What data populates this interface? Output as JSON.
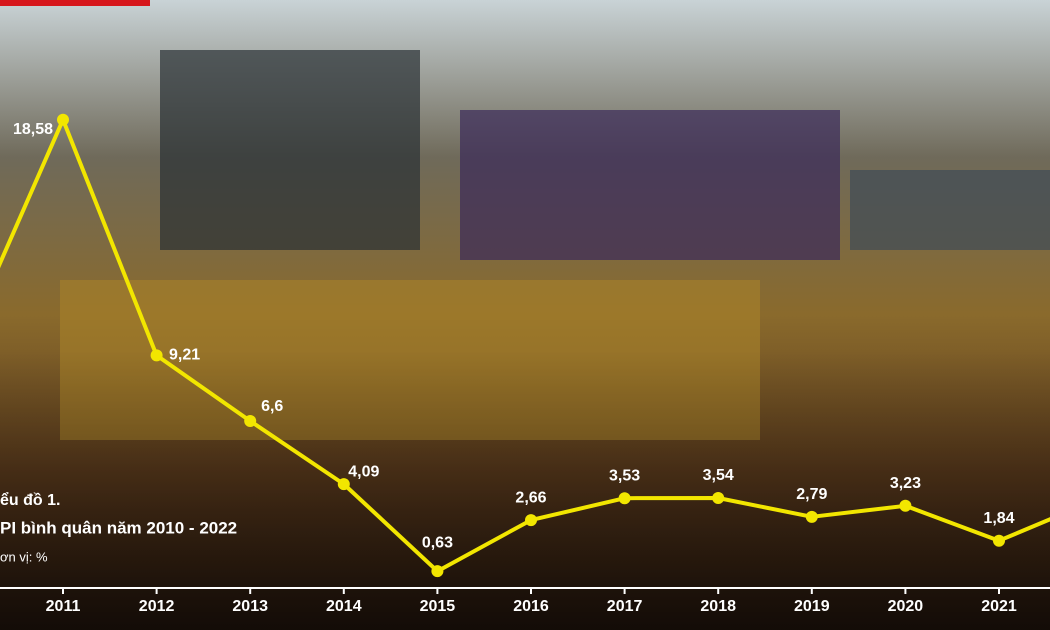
{
  "chart_data": {
    "type": "line",
    "title": "ểu đồ 1.",
    "subtitle": "PI bình quân năm 2010 - 2022",
    "unit_note": "ơn vị: %",
    "categories": [
      null,
      "2011",
      "2012",
      "2013",
      "2014",
      "2015",
      "2016",
      "2017",
      "2018",
      "2019",
      "2020",
      "2021",
      null
    ],
    "series": [
      {
        "name": "CPI",
        "color": "#f2e600",
        "values": [
          10.1,
          18.58,
          9.21,
          6.6,
          4.09,
          0.63,
          2.66,
          3.53,
          3.54,
          2.79,
          3.23,
          1.84,
          3.4
        ],
        "value_labels": [
          null,
          "18,58",
          "9,21",
          "6,6",
          "4,09",
          "0,63",
          "2,66",
          "3,53",
          "3,54",
          "2,79",
          "3,23",
          "1,84",
          null
        ]
      }
    ],
    "ylim": [
      0,
      20
    ]
  }
}
